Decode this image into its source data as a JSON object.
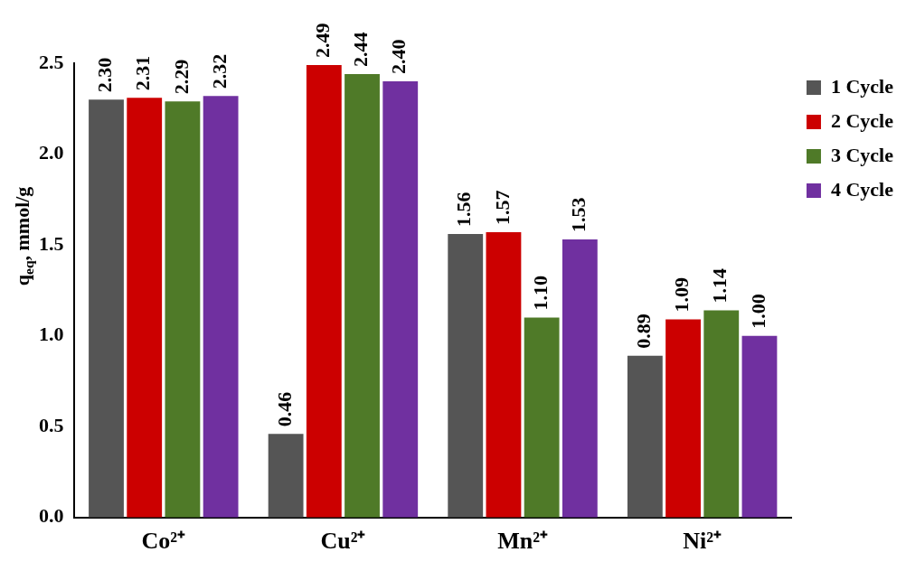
{
  "chart_data": {
    "type": "bar",
    "ylabel": "q$_{eq}$, mmol/g",
    "categories": [
      "Co²⁺",
      "Cu²⁺",
      "Mn²⁺",
      "Ni²⁺"
    ],
    "series": [
      {
        "name": "1 Cycle",
        "color": "#555555",
        "values": [
          2.3,
          0.46,
          1.56,
          0.89
        ],
        "value_labels": [
          "2.30",
          "0.46",
          "1.56",
          "0.89"
        ]
      },
      {
        "name": "2 Cycle",
        "color": "#cc0000",
        "values": [
          2.31,
          2.49,
          1.57,
          1.09
        ],
        "value_labels": [
          "2.31",
          "2.49",
          "1.57",
          "1.09"
        ]
      },
      {
        "name": "3 Cycle",
        "color": "#4f7a28",
        "values": [
          2.29,
          2.44,
          1.1,
          1.14
        ],
        "value_labels": [
          "2.29",
          "2.44",
          "1.10",
          "1.14"
        ]
      },
      {
        "name": "4 Cycle",
        "color": "#7030a0",
        "values": [
          2.32,
          2.4,
          1.53,
          1.0
        ],
        "value_labels": [
          "2.32",
          "2.40",
          "1.53",
          "1.00"
        ]
      }
    ],
    "ylim": [
      0,
      2.5
    ],
    "yticks": [
      {
        "value": 0,
        "label": "0.0"
      },
      {
        "value": 0.5,
        "label": "0.5"
      },
      {
        "value": 1,
        "label": "1.0"
      },
      {
        "value": 1.5,
        "label": "1.5"
      },
      {
        "value": 2,
        "label": "2.0"
      },
      {
        "value": 2.5,
        "label": "2.5"
      }
    ],
    "grid": false,
    "legend": "top right"
  }
}
